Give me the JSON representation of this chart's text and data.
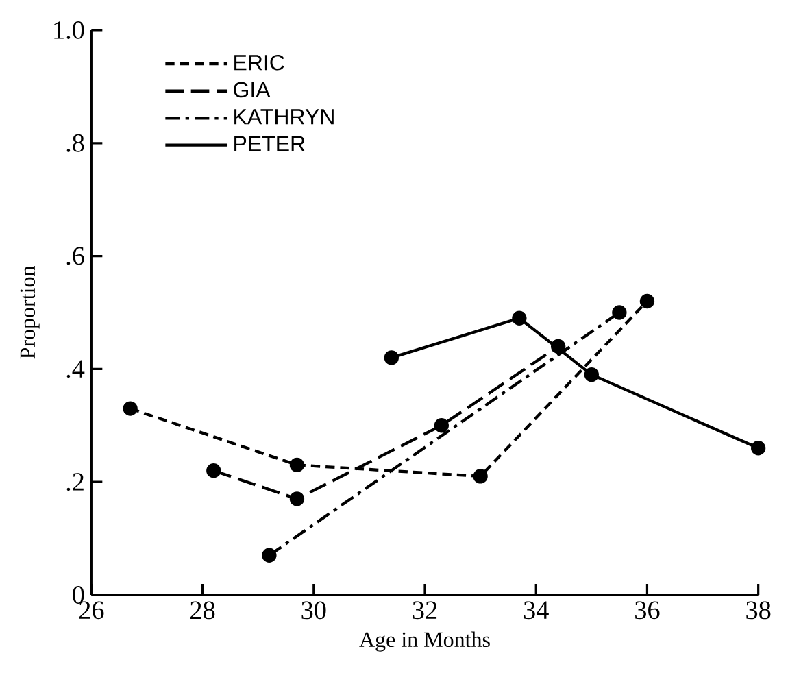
{
  "chart_data": {
    "type": "line",
    "xlabel": "Age in Months",
    "ylabel": "Proportion",
    "xlim": [
      26,
      38
    ],
    "xticks": [
      26,
      28,
      30,
      32,
      34,
      36,
      38
    ],
    "ylim": [
      0,
      1.0
    ],
    "yticks": [
      {
        "value": 0,
        "label": "0"
      },
      {
        "value": 0.2,
        "label": ".2"
      },
      {
        "value": 0.4,
        "label": ".4"
      },
      {
        "value": 0.6,
        "label": ".6"
      },
      {
        "value": 0.8,
        "label": ".8"
      },
      {
        "value": 1.0,
        "label": "1.0"
      }
    ],
    "marker": "circle",
    "legend": "top left",
    "grid": false,
    "series": [
      {
        "name": "ERIC",
        "color": "#000000",
        "line_style": "dashed",
        "x": [
          26.7,
          29.7,
          33.0,
          36.0
        ],
        "values": [
          0.33,
          0.23,
          0.21,
          0.52
        ]
      },
      {
        "name": "GIA",
        "color": "#000000",
        "line_style": "long dashed",
        "x": [
          28.2,
          29.7,
          32.3,
          34.4
        ],
        "values": [
          0.22,
          0.17,
          0.3,
          0.44
        ]
      },
      {
        "name": "KATHRYN",
        "color": "#000000",
        "line_style": "dash dot",
        "x": [
          29.2,
          35.5
        ],
        "values": [
          0.07,
          0.5
        ]
      },
      {
        "name": "PETER",
        "color": "#000000",
        "line_style": "solid",
        "x": [
          31.4,
          33.7,
          35.0,
          38.0
        ],
        "values": [
          0.42,
          0.49,
          0.39,
          0.26
        ]
      }
    ]
  }
}
